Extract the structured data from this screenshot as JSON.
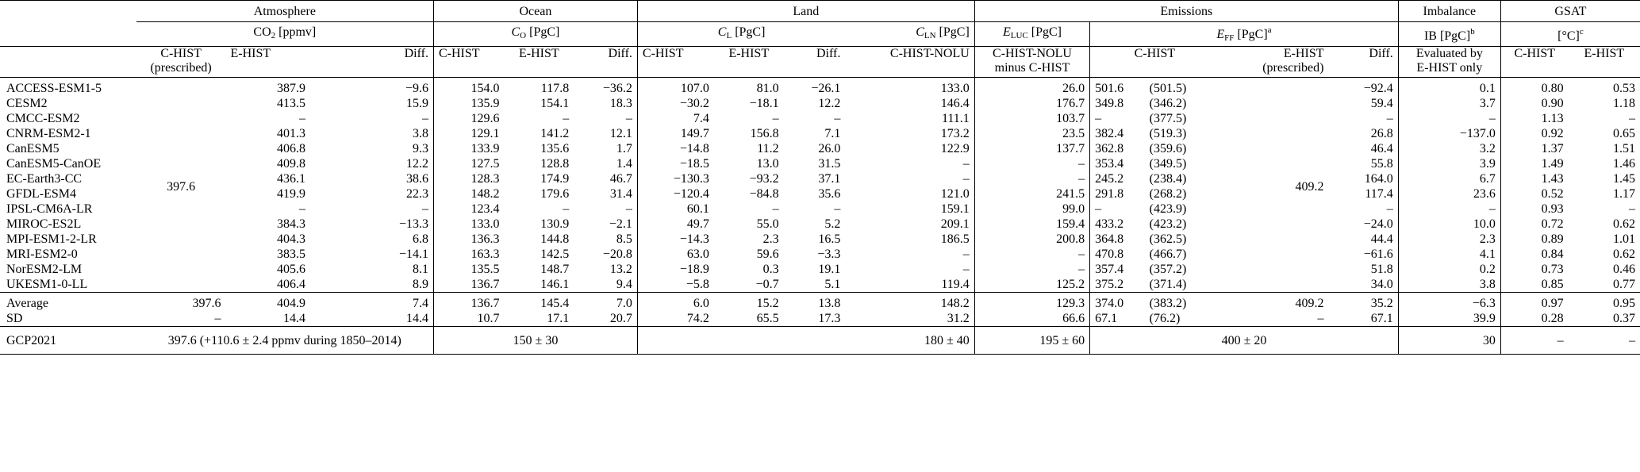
{
  "headers": {
    "groups": {
      "atmosphere": "Atmosphere",
      "ocean": "Ocean",
      "land": "Land",
      "emissions": "Emissions",
      "imbalance": "Imbalance",
      "gsat": "GSAT"
    },
    "units": {
      "co2_main": "CO",
      "co2_sub": "2",
      "co2_rest": " [ppmv]",
      "co_main": "C",
      "co_sub": "O",
      "co_rest": " [PgC]",
      "cl_main": "C",
      "cl_sub": "L",
      "cl_rest": " [PgC]",
      "cln_main": "C",
      "cln_sub": "LN",
      "cln_rest": " [PgC]",
      "eluc_main": "E",
      "eluc_sub": "LUC",
      "eluc_rest": " [PgC]",
      "eff_main": "E",
      "eff_sub": "FF",
      "eff_rest": " [PgC]",
      "eff_sup": "a",
      "ib_main": "IB [PgC]",
      "ib_sup": "b",
      "gsat_main": "[°C]",
      "gsat_sup": "c"
    },
    "columns": {
      "chist": "C-HIST",
      "chist_prescribed": "(prescribed)",
      "ehist": "E-HIST",
      "ehist_prescribed": "(prescribed)",
      "diff": "Diff.",
      "chist_nolu": "C-HIST-NOLU",
      "chist_nolu_minus_1": "C-HIST-NOLU",
      "chist_nolu_minus_2": "minus C-HIST",
      "evaluated_1": "Evaluated by",
      "evaluated_2": "E-HIST only"
    }
  },
  "prescribed": {
    "co2_chist": "397.6",
    "eff_ehist": "409.2"
  },
  "models": [
    {
      "name": "ACCESS-ESM1-5",
      "co2_e": "387.9",
      "co2_d": "−9.6",
      "co_c": "154.0",
      "co_e": "117.8",
      "co_d": "−36.2",
      "cl_c": "107.0",
      "cl_e": "81.0",
      "cl_d": "−26.1",
      "cln": "133.0",
      "eluc": "26.0",
      "eff_c": "501.6",
      "eff_c2": "(501.5)",
      "eff_d": "−92.4",
      "ib": "0.1",
      "gsat_c": "0.80",
      "gsat_e": "0.53"
    },
    {
      "name": "CESM2",
      "co2_e": "413.5",
      "co2_d": "15.9",
      "co_c": "135.9",
      "co_e": "154.1",
      "co_d": "18.3",
      "cl_c": "−30.2",
      "cl_e": "−18.1",
      "cl_d": "12.2",
      "cln": "146.4",
      "eluc": "176.7",
      "eff_c": "349.8",
      "eff_c2": "(346.2)",
      "eff_d": "59.4",
      "ib": "3.7",
      "gsat_c": "0.90",
      "gsat_e": "1.18"
    },
    {
      "name": "CMCC-ESM2",
      "co2_e": "–",
      "co2_d": "–",
      "co_c": "129.6",
      "co_e": "–",
      "co_d": "–",
      "cl_c": "7.4",
      "cl_e": "–",
      "cl_d": "–",
      "cln": "111.1",
      "eluc": "103.7",
      "eff_c": "–",
      "eff_c2": "(377.5)",
      "eff_d": "–",
      "ib": "–",
      "gsat_c": "1.13",
      "gsat_e": "–"
    },
    {
      "name": "CNRM-ESM2-1",
      "co2_e": "401.3",
      "co2_d": "3.8",
      "co_c": "129.1",
      "co_e": "141.2",
      "co_d": "12.1",
      "cl_c": "149.7",
      "cl_e": "156.8",
      "cl_d": "7.1",
      "cln": "173.2",
      "eluc": "23.5",
      "eff_c": "382.4",
      "eff_c2": "(519.3)",
      "eff_d": "26.8",
      "ib": "−137.0",
      "gsat_c": "0.92",
      "gsat_e": "0.65"
    },
    {
      "name": "CanESM5",
      "co2_e": "406.8",
      "co2_d": "9.3",
      "co_c": "133.9",
      "co_e": "135.6",
      "co_d": "1.7",
      "cl_c": "−14.8",
      "cl_e": "11.2",
      "cl_d": "26.0",
      "cln": "122.9",
      "eluc": "137.7",
      "eff_c": "362.8",
      "eff_c2": "(359.6)",
      "eff_d": "46.4",
      "ib": "3.2",
      "gsat_c": "1.37",
      "gsat_e": "1.51"
    },
    {
      "name": "CanESM5-CanOE",
      "co2_e": "409.8",
      "co2_d": "12.2",
      "co_c": "127.5",
      "co_e": "128.8",
      "co_d": "1.4",
      "cl_c": "−18.5",
      "cl_e": "13.0",
      "cl_d": "31.5",
      "cln": "–",
      "eluc": "–",
      "eff_c": "353.4",
      "eff_c2": "(349.5)",
      "eff_d": "55.8",
      "ib": "3.9",
      "gsat_c": "1.49",
      "gsat_e": "1.46"
    },
    {
      "name": "EC-Earth3-CC",
      "co2_e": "436.1",
      "co2_d": "38.6",
      "co_c": "128.3",
      "co_e": "174.9",
      "co_d": "46.7",
      "cl_c": "−130.3",
      "cl_e": "−93.2",
      "cl_d": "37.1",
      "cln": "–",
      "eluc": "–",
      "eff_c": "245.2",
      "eff_c2": "(238.4)",
      "eff_d": "164.0",
      "ib": "6.7",
      "gsat_c": "1.43",
      "gsat_e": "1.45"
    },
    {
      "name": "GFDL-ESM4",
      "co2_e": "419.9",
      "co2_d": "22.3",
      "co_c": "148.2",
      "co_e": "179.6",
      "co_d": "31.4",
      "cl_c": "−120.4",
      "cl_e": "−84.8",
      "cl_d": "35.6",
      "cln": "121.0",
      "eluc": "241.5",
      "eff_c": "291.8",
      "eff_c2": "(268.2)",
      "eff_d": "117.4",
      "ib": "23.6",
      "gsat_c": "0.52",
      "gsat_e": "1.17"
    },
    {
      "name": "IPSL-CM6A-LR",
      "co2_e": "–",
      "co2_d": "–",
      "co_c": "123.4",
      "co_e": "–",
      "co_d": "–",
      "cl_c": "60.1",
      "cl_e": "–",
      "cl_d": "–",
      "cln": "159.1",
      "eluc": "99.0",
      "eff_c": "–",
      "eff_c2": "(423.9)",
      "eff_d": "–",
      "ib": "–",
      "gsat_c": "0.93",
      "gsat_e": "–"
    },
    {
      "name": "MIROC-ES2L",
      "co2_e": "384.3",
      "co2_d": "−13.3",
      "co_c": "133.0",
      "co_e": "130.9",
      "co_d": "−2.1",
      "cl_c": "49.7",
      "cl_e": "55.0",
      "cl_d": "5.2",
      "cln": "209.1",
      "eluc": "159.4",
      "eff_c": "433.2",
      "eff_c2": "(423.2)",
      "eff_d": "−24.0",
      "ib": "10.0",
      "gsat_c": "0.72",
      "gsat_e": "0.62"
    },
    {
      "name": "MPI-ESM1-2-LR",
      "co2_e": "404.3",
      "co2_d": "6.8",
      "co_c": "136.3",
      "co_e": "144.8",
      "co_d": "8.5",
      "cl_c": "−14.3",
      "cl_e": "2.3",
      "cl_d": "16.5",
      "cln": "186.5",
      "eluc": "200.8",
      "eff_c": "364.8",
      "eff_c2": "(362.5)",
      "eff_d": "44.4",
      "ib": "2.3",
      "gsat_c": "0.89",
      "gsat_e": "1.01"
    },
    {
      "name": "MRI-ESM2-0",
      "co2_e": "383.5",
      "co2_d": "−14.1",
      "co_c": "163.3",
      "co_e": "142.5",
      "co_d": "−20.8",
      "cl_c": "63.0",
      "cl_e": "59.6",
      "cl_d": "−3.3",
      "cln": "–",
      "eluc": "–",
      "eff_c": "470.8",
      "eff_c2": "(466.7)",
      "eff_d": "−61.6",
      "ib": "4.1",
      "gsat_c": "0.84",
      "gsat_e": "0.62"
    },
    {
      "name": "NorESM2-LM",
      "co2_e": "405.6",
      "co2_d": "8.1",
      "co_c": "135.5",
      "co_e": "148.7",
      "co_d": "13.2",
      "cl_c": "−18.9",
      "cl_e": "0.3",
      "cl_d": "19.1",
      "cln": "–",
      "eluc": "–",
      "eff_c": "357.4",
      "eff_c2": "(357.2)",
      "eff_d": "51.8",
      "ib": "0.2",
      "gsat_c": "0.73",
      "gsat_e": "0.46"
    },
    {
      "name": "UKESM1-0-LL",
      "co2_e": "406.4",
      "co2_d": "8.9",
      "co_c": "136.7",
      "co_e": "146.1",
      "co_d": "9.4",
      "cl_c": "−5.8",
      "cl_e": "−0.7",
      "cl_d": "5.1",
      "cln": "119.4",
      "eluc": "125.2",
      "eff_c": "375.2",
      "eff_c2": "(371.4)",
      "eff_d": "34.0",
      "ib": "3.8",
      "gsat_c": "0.85",
      "gsat_e": "0.77"
    }
  ],
  "summary": [
    {
      "name": "Average",
      "co2_c": "397.6",
      "co2_e": "404.9",
      "co2_d": "7.4",
      "co_c": "136.7",
      "co_e": "145.4",
      "co_d": "7.0",
      "cl_c": "6.0",
      "cl_e": "15.2",
      "cl_d": "13.8",
      "cln": "148.2",
      "eluc": "129.3",
      "eff_c": "374.0",
      "eff_c2": "(383.2)",
      "eff_e": "409.2",
      "eff_d": "35.2",
      "ib": "−6.3",
      "gsat_c": "0.97",
      "gsat_e": "0.95"
    },
    {
      "name": "SD",
      "co2_c": "–",
      "co2_e": "14.4",
      "co2_d": "14.4",
      "co_c": "10.7",
      "co_e": "17.1",
      "co_d": "20.7",
      "cl_c": "74.2",
      "cl_e": "65.5",
      "cl_d": "17.3",
      "cln": "31.2",
      "eluc": "66.6",
      "eff_c": "67.1",
      "eff_c2": "(76.2)",
      "eff_e": "–",
      "eff_d": "67.1",
      "ib": "39.9",
      "gsat_c": "0.28",
      "gsat_e": "0.37"
    }
  ],
  "gcp": {
    "name": "GCP2021",
    "atmosphere": "397.6 (+110.6 ± 2.4 ppmv during 1850–2014)",
    "ocean": "150 ± 30",
    "land": "180 ± 40",
    "eluc": "195 ± 60",
    "emissions": "400 ± 20",
    "imbalance": "30",
    "gsat_c": "–",
    "gsat_e": "–"
  }
}
